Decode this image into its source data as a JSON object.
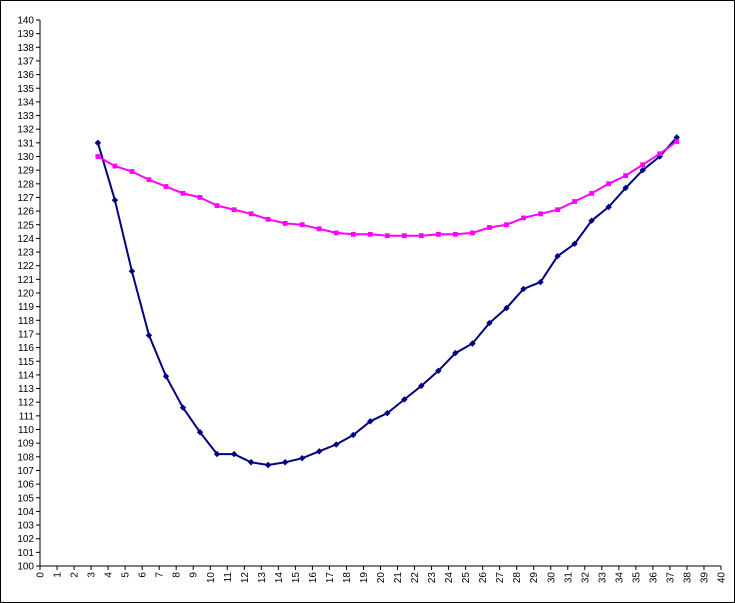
{
  "chart_data": {
    "type": "line",
    "title": "",
    "xlabel": "",
    "ylabel": "",
    "xlim": [
      0,
      40
    ],
    "ylim": [
      100,
      140
    ],
    "x_tick_step": 1,
    "y_tick_step": 1,
    "grid": false,
    "legend": "none",
    "series": [
      {
        "color": "#000080",
        "marker": "diamond",
        "points": [
          [
            3.4,
            131.0
          ],
          [
            4.4,
            126.8
          ],
          [
            5.4,
            121.6
          ],
          [
            6.4,
            116.9
          ],
          [
            7.4,
            113.9
          ],
          [
            8.4,
            111.6
          ],
          [
            9.4,
            109.8
          ],
          [
            10.4,
            108.2
          ],
          [
            11.4,
            108.2
          ],
          [
            12.4,
            107.6
          ],
          [
            13.4,
            107.4
          ],
          [
            14.4,
            107.6
          ],
          [
            15.4,
            107.9
          ],
          [
            16.4,
            108.4
          ],
          [
            17.4,
            108.9
          ],
          [
            18.4,
            109.6
          ],
          [
            19.4,
            110.6
          ],
          [
            20.4,
            111.2
          ],
          [
            21.4,
            112.2
          ],
          [
            22.4,
            113.2
          ],
          [
            23.4,
            114.3
          ],
          [
            24.4,
            115.6
          ],
          [
            25.4,
            116.3
          ],
          [
            26.4,
            117.8
          ],
          [
            27.4,
            118.9
          ],
          [
            28.4,
            120.3
          ],
          [
            29.4,
            120.8
          ],
          [
            30.4,
            122.7
          ],
          [
            31.4,
            123.6
          ],
          [
            32.4,
            125.3
          ],
          [
            33.4,
            126.3
          ],
          [
            34.4,
            127.7
          ],
          [
            35.4,
            129.0
          ],
          [
            36.4,
            130.0
          ],
          [
            37.4,
            131.4
          ]
        ]
      },
      {
        "color": "#ff00ff",
        "marker": "square",
        "points": [
          [
            3.4,
            130.0
          ],
          [
            4.4,
            129.3
          ],
          [
            5.4,
            128.9
          ],
          [
            6.4,
            128.3
          ],
          [
            7.4,
            127.8
          ],
          [
            8.4,
            127.3
          ],
          [
            9.4,
            127.0
          ],
          [
            10.4,
            126.4
          ],
          [
            11.4,
            126.1
          ],
          [
            12.4,
            125.8
          ],
          [
            13.4,
            125.4
          ],
          [
            14.4,
            125.1
          ],
          [
            15.4,
            125.0
          ],
          [
            16.4,
            124.7
          ],
          [
            17.4,
            124.4
          ],
          [
            18.4,
            124.3
          ],
          [
            19.4,
            124.3
          ],
          [
            20.4,
            124.2
          ],
          [
            21.4,
            124.2
          ],
          [
            22.4,
            124.2
          ],
          [
            23.4,
            124.3
          ],
          [
            24.4,
            124.3
          ],
          [
            25.4,
            124.4
          ],
          [
            26.4,
            124.8
          ],
          [
            27.4,
            125.0
          ],
          [
            28.4,
            125.5
          ],
          [
            29.4,
            125.8
          ],
          [
            30.4,
            126.1
          ],
          [
            31.4,
            126.7
          ],
          [
            32.4,
            127.3
          ],
          [
            33.4,
            128.0
          ],
          [
            34.4,
            128.6
          ],
          [
            35.4,
            129.4
          ],
          [
            36.4,
            130.2
          ],
          [
            37.4,
            131.1
          ]
        ]
      }
    ]
  }
}
